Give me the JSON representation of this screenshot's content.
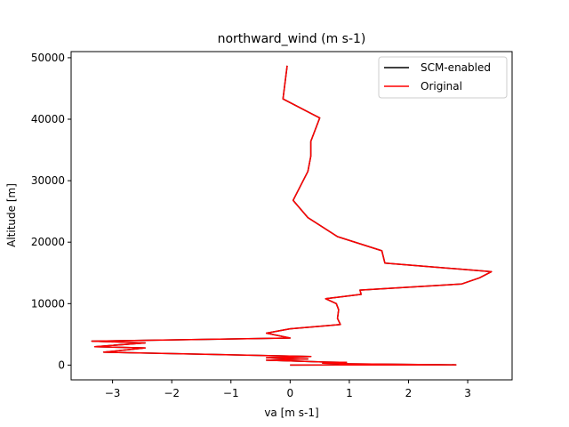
{
  "chart_data": {
    "type": "line",
    "title": "northward_wind (m s-1)",
    "xlabel": "va [m s-1]",
    "ylabel": "Altitude [m]",
    "xlim": [
      -3.7,
      3.75
    ],
    "ylim": [
      -2400,
      51000
    ],
    "xticks": [
      -3,
      -2,
      -1,
      0,
      1,
      2,
      3
    ],
    "xtick_labels": [
      "−3",
      "−2",
      "−1",
      "0",
      "1",
      "2",
      "3"
    ],
    "yticks": [
      0,
      10000,
      20000,
      30000,
      40000,
      50000
    ],
    "ytick_labels": [
      "0",
      "10000",
      "20000",
      "30000",
      "40000",
      "50000"
    ],
    "grid": false,
    "legend_position": "top-right",
    "series": [
      {
        "name": "SCM-enabled",
        "color": "#000000",
        "x": [
          0.0,
          2.8,
          1.0,
          0.55,
          0.95,
          0.6,
          -0.4,
          0.3,
          -0.4,
          0.35,
          -3.15,
          -2.45,
          -3.3,
          -2.45,
          -3.35,
          0.0,
          -0.4,
          0.0,
          0.85,
          0.8,
          0.82,
          0.78,
          0.6,
          1.2,
          1.18,
          2.9,
          3.2,
          3.4,
          1.6,
          1.55,
          0.8,
          0.3,
          0.05,
          0.3,
          0.35,
          0.35,
          0.5,
          -0.12,
          -0.05
        ],
        "y": [
          0,
          50,
          200,
          300,
          450,
          500,
          800,
          1000,
          1200,
          1400,
          2100,
          2800,
          3000,
          3600,
          3900,
          4400,
          5200,
          5900,
          6600,
          7600,
          9000,
          10000,
          10800,
          11500,
          12200,
          13200,
          14200,
          15200,
          16600,
          18600,
          20900,
          24000,
          26800,
          31500,
          34000,
          36400,
          40200,
          43300,
          48700
        ]
      },
      {
        "name": "Original",
        "color": "#ff0000",
        "x": [
          0.0,
          2.8,
          1.0,
          0.55,
          0.95,
          0.6,
          -0.4,
          0.3,
          -0.4,
          0.35,
          -3.15,
          -2.45,
          -3.3,
          -2.45,
          -3.35,
          0.0,
          -0.4,
          0.0,
          0.85,
          0.8,
          0.82,
          0.78,
          0.6,
          1.2,
          1.18,
          2.9,
          3.2,
          3.4,
          1.6,
          1.55,
          0.8,
          0.3,
          0.05,
          0.3,
          0.35,
          0.35,
          0.5,
          -0.12,
          -0.05
        ],
        "y": [
          0,
          50,
          200,
          300,
          450,
          500,
          800,
          1000,
          1200,
          1400,
          2100,
          2800,
          3000,
          3600,
          3900,
          4400,
          5200,
          5900,
          6600,
          7600,
          9000,
          10000,
          10800,
          11500,
          12200,
          13200,
          14200,
          15200,
          16600,
          18600,
          20900,
          24000,
          26800,
          31500,
          34000,
          36400,
          40200,
          43300,
          48700
        ]
      }
    ]
  }
}
